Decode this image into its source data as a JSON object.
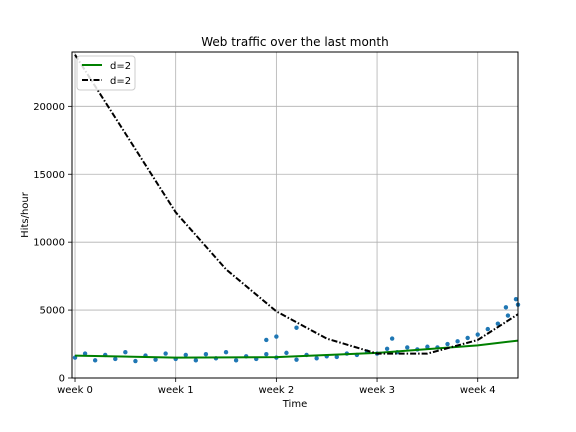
{
  "chart_data": {
    "type": "scatter",
    "title": "Web traffic over the last month",
    "xlabel": "Time",
    "ylabel": "Hits/hour",
    "xlim": [
      -0.03,
      4.4
    ],
    "ylim": [
      0,
      24000
    ],
    "grid": true,
    "legend_placement": "top-left",
    "x_ticks": [
      {
        "value": 0,
        "label": "week 0"
      },
      {
        "value": 1,
        "label": "week 1"
      },
      {
        "value": 2,
        "label": "week 2"
      },
      {
        "value": 3,
        "label": "week 3"
      },
      {
        "value": 4,
        "label": "week 4"
      }
    ],
    "y_ticks": [
      {
        "value": 0,
        "label": "0"
      },
      {
        "value": 5000,
        "label": "5000"
      },
      {
        "value": 10000,
        "label": "10000"
      },
      {
        "value": 15000,
        "label": "15000"
      },
      {
        "value": 20000,
        "label": "20000"
      }
    ],
    "scatter": {
      "color": "#1f77b4",
      "points": [
        [
          0.0,
          1500
        ],
        [
          0.1,
          1800
        ],
        [
          0.2,
          1300
        ],
        [
          0.3,
          1700
        ],
        [
          0.4,
          1400
        ],
        [
          0.5,
          1900
        ],
        [
          0.6,
          1250
        ],
        [
          0.7,
          1650
        ],
        [
          0.8,
          1350
        ],
        [
          0.9,
          1800
        ],
        [
          1.0,
          1400
        ],
        [
          1.1,
          1700
        ],
        [
          1.2,
          1300
        ],
        [
          1.3,
          1750
        ],
        [
          1.4,
          1450
        ],
        [
          1.5,
          1900
        ],
        [
          1.6,
          1300
        ],
        [
          1.7,
          1600
        ],
        [
          1.8,
          1400
        ],
        [
          1.9,
          1750
        ],
        [
          2.0,
          1500
        ],
        [
          2.1,
          1850
        ],
        [
          2.2,
          1350
        ],
        [
          2.3,
          1700
        ],
        [
          2.4,
          1450
        ],
        [
          2.5,
          1600
        ],
        [
          2.6,
          1550
        ],
        [
          2.7,
          1800
        ],
        [
          2.8,
          1700
        ],
        [
          2.9,
          1950
        ],
        [
          3.0,
          1800
        ],
        [
          3.1,
          2150
        ],
        [
          3.2,
          1900
        ],
        [
          3.3,
          2250
        ],
        [
          3.4,
          2100
        ],
        [
          3.5,
          2300
        ],
        [
          3.6,
          2250
        ],
        [
          3.7,
          2500
        ],
        [
          3.8,
          2700
        ],
        [
          3.9,
          2950
        ],
        [
          4.0,
          3200
        ],
        [
          4.1,
          3600
        ],
        [
          4.2,
          4000
        ],
        [
          4.3,
          4600
        ],
        [
          4.4,
          5400
        ],
        [
          2.2,
          3700
        ],
        [
          2.0,
          3050
        ],
        [
          1.9,
          2800
        ],
        [
          3.15,
          2900
        ],
        [
          4.28,
          5200
        ],
        [
          4.38,
          5800
        ]
      ]
    },
    "lines": [
      {
        "name": "d=2",
        "color": "#008000",
        "style": "solid",
        "points": [
          [
            0,
            1650
          ],
          [
            1,
            1500
          ],
          [
            2,
            1540
          ],
          [
            3,
            1850
          ],
          [
            4,
            2400
          ],
          [
            4.4,
            2750
          ]
        ]
      },
      {
        "name": "d=2",
        "color": "#000000",
        "style": "dashdot",
        "points": [
          [
            0,
            23800
          ],
          [
            0.5,
            18000
          ],
          [
            1,
            12200
          ],
          [
            1.5,
            8000
          ],
          [
            2,
            4900
          ],
          [
            2.5,
            2900
          ],
          [
            3,
            1800
          ],
          [
            3.5,
            1800
          ],
          [
            4,
            2800
          ],
          [
            4.4,
            4700
          ]
        ]
      }
    ]
  }
}
